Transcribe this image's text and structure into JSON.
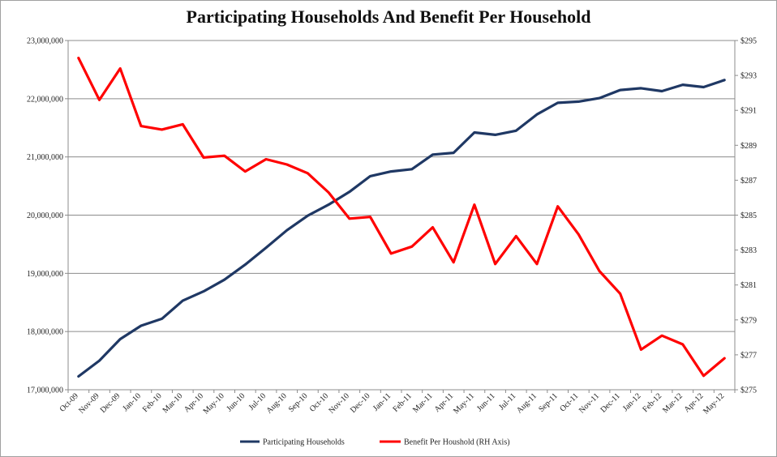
{
  "chart_data": {
    "type": "line",
    "title": "Participating Households And Benefit Per Household",
    "categories": [
      "Oct-09",
      "Nov-09",
      "Dec-09",
      "Jan-10",
      "Feb-10",
      "Mar-10",
      "Apr-10",
      "May-10",
      "Jun-10",
      "Jul-10",
      "Aug-10",
      "Sep-10",
      "Oct-10",
      "Nov-10",
      "Dec-10",
      "Jan-11",
      "Feb-11",
      "Mar-11",
      "Apr-11",
      "May-11",
      "Jun-11",
      "Jul-11",
      "Aug-11",
      "Sep-11",
      "Oct-11",
      "Nov-11",
      "Dec-11",
      "Jan-12",
      "Feb-12",
      "Mar-12",
      "Apr-12",
      "May-12"
    ],
    "y_left": {
      "ylim": [
        17000000,
        23000000
      ],
      "ticks": [
        17000000,
        18000000,
        19000000,
        20000000,
        21000000,
        22000000,
        23000000
      ],
      "tick_labels": [
        "17,000,000",
        "18,000,000",
        "19,000,000",
        "20,000,000",
        "21,000,000",
        "22,000,000",
        "23,000,000"
      ]
    },
    "y_right": {
      "ylim": [
        275,
        295
      ],
      "ticks": [
        275,
        277,
        279,
        281,
        283,
        285,
        287,
        289,
        291,
        293,
        295
      ],
      "tick_labels": [
        "$275",
        "$277",
        "$279",
        "$281",
        "$283",
        "$285",
        "$287",
        "$289",
        "$291",
        "$293",
        "$295"
      ]
    },
    "grid": true,
    "legend_position": "bottom",
    "series": [
      {
        "name": "Participating Households",
        "axis": "left",
        "color": "#1f3864",
        "values": [
          17230000,
          17500000,
          17870000,
          18100000,
          18220000,
          18530000,
          18690000,
          18890000,
          19150000,
          19440000,
          19740000,
          19990000,
          20180000,
          20400000,
          20670000,
          20750000,
          20790000,
          21040000,
          21070000,
          21420000,
          21380000,
          21450000,
          21730000,
          21930000,
          21950000,
          22010000,
          22150000,
          22180000,
          22130000,
          22240000,
          22200000,
          22320000
        ]
      },
      {
        "name": "Benefit Per Houshold (RH Axis)",
        "axis": "right",
        "color": "#ff0000",
        "values": [
          294.0,
          291.6,
          293.4,
          290.1,
          289.9,
          290.2,
          288.3,
          288.4,
          287.5,
          288.2,
          287.9,
          287.4,
          286.3,
          284.8,
          284.9,
          282.8,
          283.2,
          284.3,
          282.3,
          285.6,
          282.2,
          283.8,
          282.2,
          285.5,
          283.9,
          281.8,
          280.5,
          277.3,
          278.1,
          277.6,
          275.8,
          276.8
        ]
      }
    ]
  }
}
